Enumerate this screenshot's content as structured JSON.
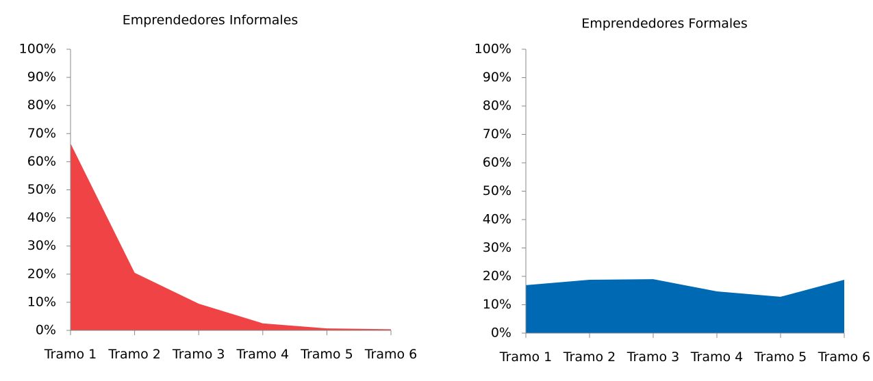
{
  "chart_data": [
    {
      "type": "area",
      "title": "Emprendedores Informales",
      "categories": [
        "Tramo 1",
        "Tramo 2",
        "Tramo 3",
        "Tramo 4",
        "Tramo 5",
        "Tramo 6"
      ],
      "values": [
        66.5,
        20.5,
        9.5,
        2.5,
        0.7,
        0.4
      ],
      "color": "#ef4345",
      "ylim": [
        0,
        100
      ],
      "yticks": [
        {
          "value": 0,
          "label": "0%"
        },
        {
          "value": 10,
          "label": "10%"
        },
        {
          "value": 20,
          "label": "20%"
        },
        {
          "value": 30,
          "label": "30%"
        },
        {
          "value": 40,
          "label": "40%"
        },
        {
          "value": 50,
          "label": "50%"
        },
        {
          "value": 60,
          "label": "60%"
        },
        {
          "value": 70,
          "label": "70%"
        },
        {
          "value": 80,
          "label": "80%"
        },
        {
          "value": 90,
          "label": "90%"
        },
        {
          "value": 100,
          "label": "100%"
        }
      ]
    },
    {
      "type": "area",
      "title": "Emprendedores Formales",
      "categories": [
        "Tramo 1",
        "Tramo 2",
        "Tramo 3",
        "Tramo 4",
        "Tramo 5",
        "Tramo 6"
      ],
      "values": [
        16.9,
        18.8,
        19.0,
        14.7,
        12.8,
        18.8
      ],
      "color": "#0069b4",
      "ylim": [
        0,
        100
      ],
      "yticks": [
        {
          "value": 0,
          "label": "0%"
        },
        {
          "value": 10,
          "label": "10%"
        },
        {
          "value": 20,
          "label": "20%"
        },
        {
          "value": 30,
          "label": "30%"
        },
        {
          "value": 40,
          "label": "40%"
        },
        {
          "value": 50,
          "label": "50%"
        },
        {
          "value": 60,
          "label": "60%"
        },
        {
          "value": 70,
          "label": "70%"
        },
        {
          "value": 80,
          "label": "80%"
        },
        {
          "value": 90,
          "label": "90%"
        },
        {
          "value": 100,
          "label": "100%"
        }
      ]
    }
  ]
}
